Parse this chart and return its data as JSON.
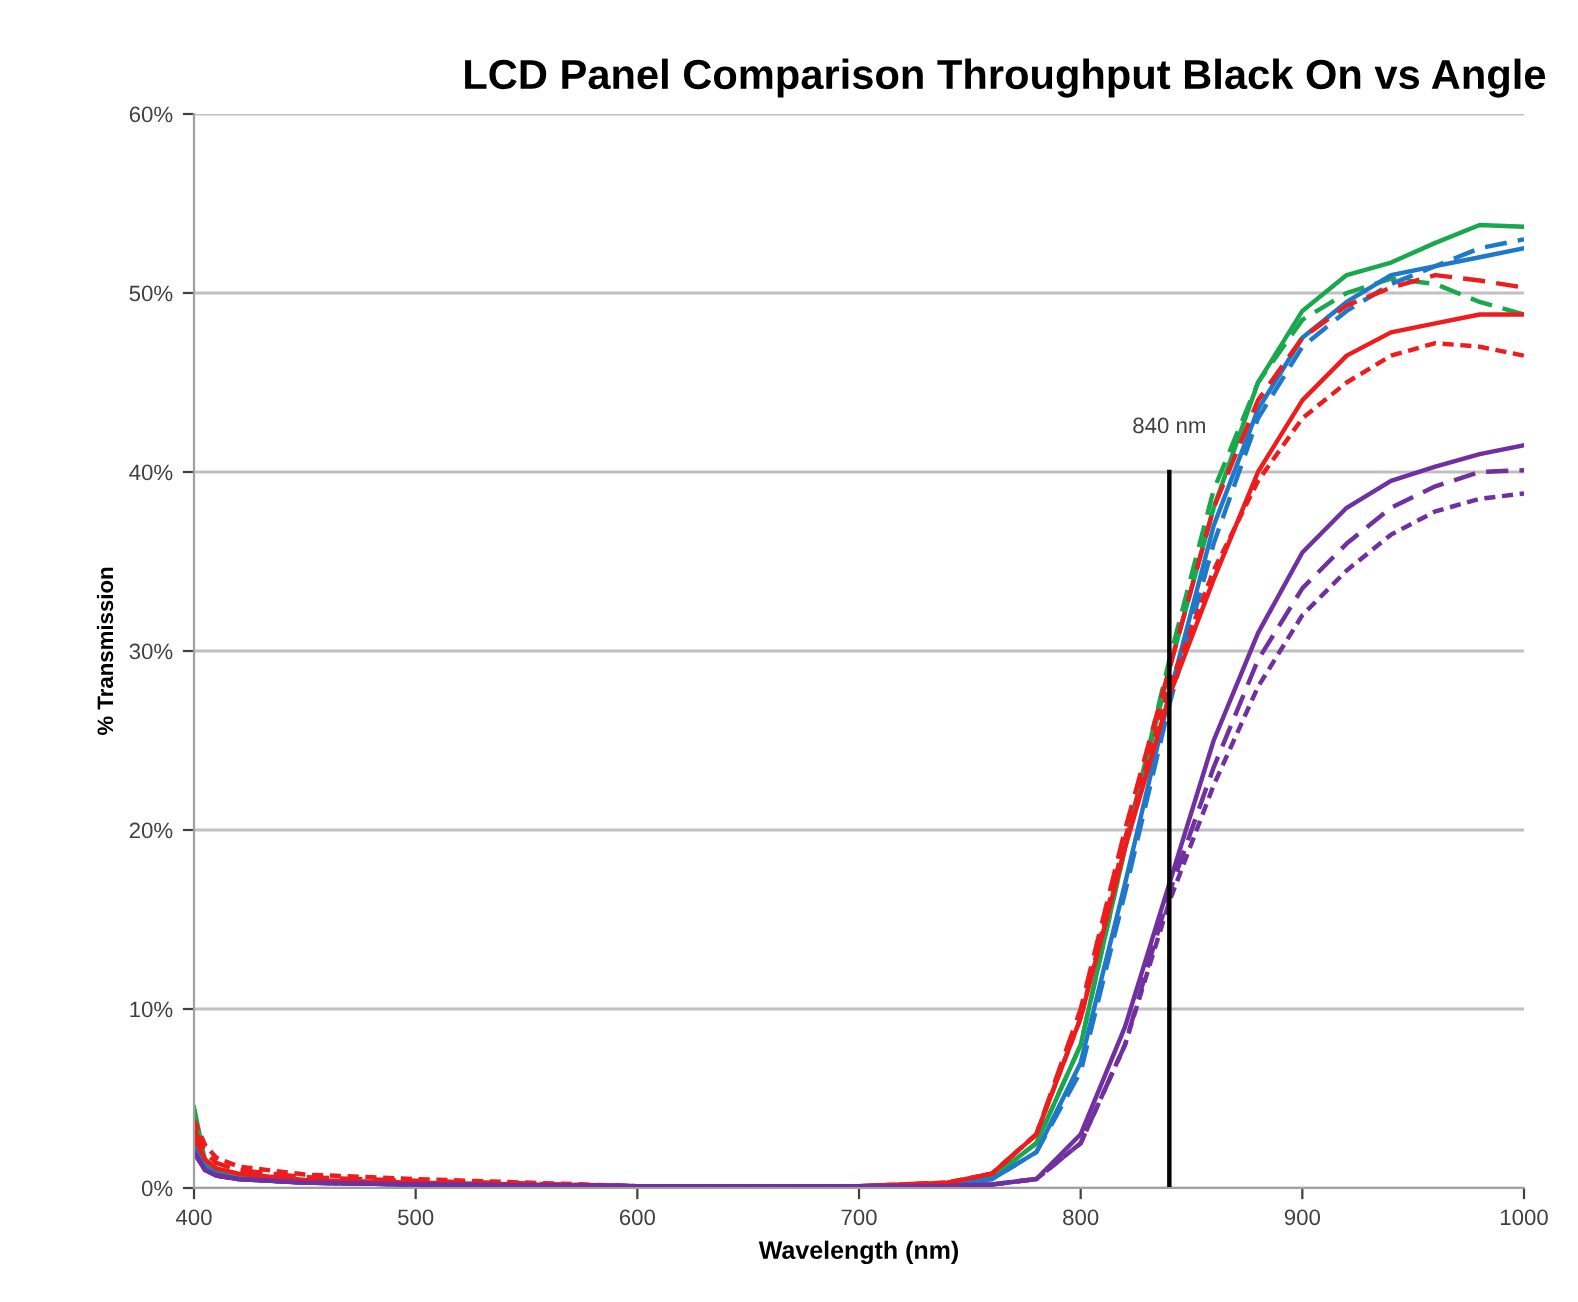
{
  "chart_data": {
    "type": "line",
    "title": "LCD Panel Comparison Throughput Black On vs Angle",
    "xlabel": "Wavelength (nm)",
    "ylabel": "% Transmission",
    "x": [
      400,
      405,
      410,
      420,
      450,
      500,
      600,
      700,
      740,
      760,
      780,
      800,
      820,
      840,
      860,
      880,
      900,
      920,
      940,
      960,
      980,
      1000
    ],
    "series": [
      {
        "color": "#1aa84f",
        "line_style": "solid",
        "values": [
          4.5,
          1.5,
          1,
          0.6,
          0.3,
          0.2,
          0.1,
          0.1,
          0.2,
          0.6,
          2.5,
          8,
          19,
          29,
          38,
          45,
          49,
          51,
          51.7,
          52.8,
          53.8,
          53.7
        ]
      },
      {
        "color": "#1aa84f",
        "line_style": "dashed",
        "values": [
          3,
          1.2,
          0.8,
          0.5,
          0.3,
          0.2,
          0.1,
          0.1,
          0.2,
          0.6,
          2.5,
          8,
          19,
          29.5,
          39,
          45,
          48.5,
          50,
          50.8,
          50.5,
          49.5,
          48.8
        ]
      },
      {
        "color": "#1f78c8",
        "line_style": "solid",
        "values": [
          2.5,
          1.2,
          0.8,
          0.5,
          0.3,
          0.2,
          0.1,
          0.1,
          0.2,
          0.5,
          2,
          7,
          17,
          27.5,
          37,
          43.5,
          47.5,
          49.5,
          51,
          51.5,
          52,
          52.5
        ]
      },
      {
        "color": "#1f78c8",
        "line_style": "dashed",
        "values": [
          2.5,
          1,
          0.7,
          0.5,
          0.3,
          0.2,
          0.1,
          0.1,
          0.2,
          0.5,
          2,
          6.5,
          16.5,
          27,
          36,
          43,
          47,
          49,
          50.5,
          51.5,
          52.5,
          53
        ]
      },
      {
        "color": "#ee1c1c",
        "line_style": "solid",
        "values": [
          2.8,
          1.6,
          1.1,
          0.8,
          0.45,
          0.3,
          0.1,
          0.1,
          0.3,
          0.8,
          3,
          9.5,
          19,
          27.5,
          34,
          40,
          44,
          46.5,
          47.8,
          48.3,
          48.8,
          48.8
        ]
      },
      {
        "color": "#ee1c1c",
        "line_style": "dashed",
        "values": [
          3.3,
          2,
          1.4,
          1,
          0.6,
          0.4,
          0.1,
          0.1,
          0.3,
          0.8,
          3,
          10,
          20,
          29,
          38,
          44,
          47.5,
          49.3,
          50.3,
          51,
          50.7,
          50.3
        ]
      },
      {
        "color": "#ee1c1c",
        "line_style": "dotted",
        "values": [
          3.8,
          2.4,
          1.7,
          1.2,
          0.75,
          0.5,
          0.1,
          0.1,
          0.3,
          0.8,
          3,
          9.5,
          19.5,
          28,
          34.5,
          39.5,
          43,
          45,
          46.5,
          47.2,
          47,
          46.5
        ]
      },
      {
        "color": "#7030a0",
        "line_style": "solid",
        "values": [
          2,
          1,
          0.7,
          0.5,
          0.3,
          0.2,
          0.1,
          0.1,
          0.1,
          0.2,
          0.5,
          3,
          9,
          17,
          25,
          31,
          35.5,
          38,
          39.5,
          40.3,
          41,
          41.5
        ]
      },
      {
        "color": "#7030a0",
        "line_style": "dashed",
        "values": [
          2,
          1,
          0.7,
          0.5,
          0.3,
          0.2,
          0.1,
          0.1,
          0.1,
          0.2,
          0.5,
          2.5,
          8,
          16.5,
          23.5,
          29.5,
          33.5,
          36,
          38,
          39.2,
          40,
          40.1
        ]
      },
      {
        "color": "#7030a0",
        "line_style": "dotted",
        "values": [
          2,
          1,
          0.7,
          0.5,
          0.3,
          0.2,
          0.1,
          0.1,
          0.1,
          0.2,
          0.5,
          2.5,
          8,
          16,
          22.5,
          28,
          32,
          34.5,
          36.5,
          37.8,
          38.5,
          38.8
        ]
      },
      {
        "color": "#000000",
        "line_style": "solid",
        "x": [
          840,
          840
        ],
        "values": [
          0,
          40
        ]
      }
    ],
    "annotations": [
      {
        "text": "840 nm",
        "x": 840,
        "y": 40
      }
    ],
    "xlim": [
      400,
      1000
    ],
    "xticks": [
      400,
      500,
      600,
      700,
      800,
      900,
      1000
    ],
    "ylim": [
      0,
      60
    ],
    "yticks": [
      {
        "value": 0,
        "label": "0%"
      },
      {
        "value": 10,
        "label": "10%"
      },
      {
        "value": 20,
        "label": "20%"
      },
      {
        "value": 30,
        "label": "30%"
      },
      {
        "value": 40,
        "label": "40%"
      },
      {
        "value": 50,
        "label": "50%"
      },
      {
        "value": 60,
        "label": "60%"
      }
    ],
    "grid": "y",
    "legend": false,
    "marker": "none"
  }
}
